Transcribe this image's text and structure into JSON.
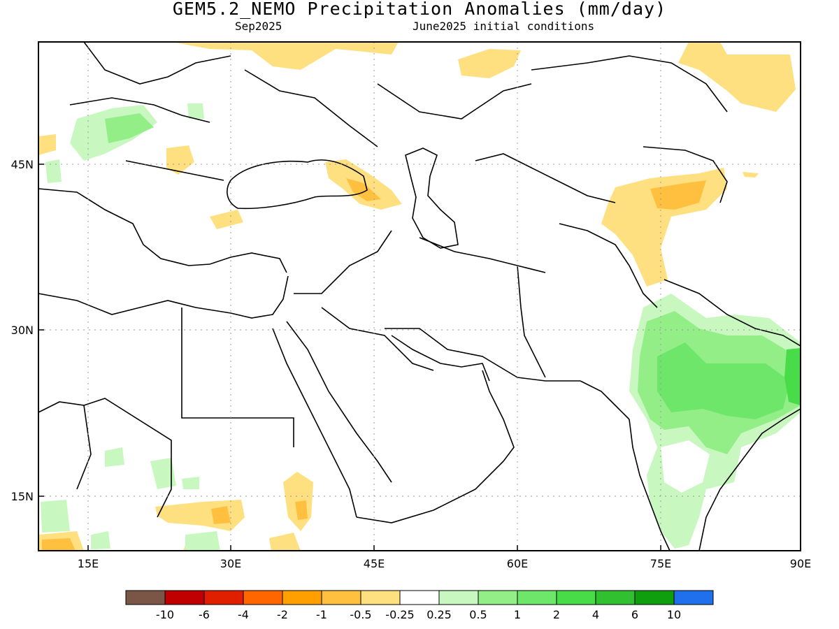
{
  "header": {
    "title": "GEM5.2_NEMO Precipitation Anomalies (mm/day)",
    "period": "Sep2025",
    "init": "June2025 initial conditions"
  },
  "map": {
    "lon_range": [
      10,
      90
    ],
    "lat_range": [
      10,
      55
    ],
    "lon_ticks": [
      "15E",
      "30E",
      "45E",
      "60E",
      "75E",
      "90E"
    ],
    "lat_ticks": [
      "15N",
      "30N",
      "45N"
    ]
  },
  "legend": {
    "colors": [
      "#7b5646",
      "#c00000",
      "#e01e00",
      "#ff6600",
      "#ffa000",
      "#ffc040",
      "#ffe080",
      "#ffffff",
      "#c8f8c0",
      "#94ee88",
      "#6ee66a",
      "#48dc48",
      "#30c030",
      "#0e9e0e",
      "#2070ee"
    ],
    "labels": [
      "-10",
      "-6",
      "-4",
      "-2",
      "-1",
      "-0.5",
      "-0.25",
      "0.25",
      "0.5",
      "1",
      "2",
      "4",
      "6",
      "10"
    ]
  }
}
